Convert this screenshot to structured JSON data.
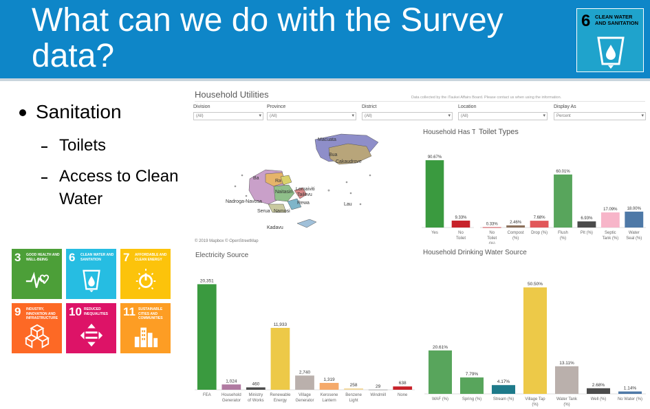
{
  "slide": {
    "title": "What can we do with the Survey data?",
    "bullets": [
      {
        "label": "Sanitation",
        "sub": [
          "Toilets",
          "Access to Clean Water"
        ]
      }
    ]
  },
  "sdg_badge": {
    "number": "6",
    "label": "CLEAN WATER AND SANITATION",
    "icon": "water-drop-glass-icon",
    "color": "#1fa3cc"
  },
  "sdg_grid": [
    {
      "number": "3",
      "label": "GOOD HEALTH AND WELL-BEING",
      "color": "#4c9f38",
      "icon": "heartbeat-icon"
    },
    {
      "number": "6",
      "label": "CLEAN WATER AND SANITATION",
      "color": "#26bde2",
      "icon": "water-drop-glass-icon"
    },
    {
      "number": "7",
      "label": "AFFORDABLE AND CLEAN ENERGY",
      "color": "#fcc30b",
      "icon": "power-sun-icon"
    },
    {
      "number": "9",
      "label": "INDUSTRY, INNOVATION AND INFRASTRUCTURE",
      "color": "#fd6925",
      "icon": "cubes-icon"
    },
    {
      "number": "10",
      "label": "REDUCED INEQUALITIES",
      "color": "#dd1367",
      "icon": "equality-icon"
    },
    {
      "number": "11",
      "label": "SUSTAINABLE CITIES AND COMMUNITIES",
      "color": "#fd9d24",
      "icon": "buildings-icon"
    }
  ],
  "dashboard": {
    "title": "Household Utilities",
    "note": "Data collected by the iTaukei Affairs Board. Please contact us when using the information.",
    "filters": [
      {
        "label": "Division",
        "value": "(All)"
      },
      {
        "label": "Province",
        "value": "(All)"
      },
      {
        "label": "District",
        "value": "(All)"
      },
      {
        "label": "Location",
        "value": "(All)"
      },
      {
        "label": "Display As",
        "value": "Percent"
      }
    ],
    "map": {
      "attribution": "© 2019 Mapbox © OpenStreetMap",
      "labels": [
        "Macuata",
        "Bua",
        "Cakaudrove",
        "Ba",
        "Ra",
        "Naitasiri",
        "Lomaiviti",
        "Tailevu",
        "Rewa",
        "Nadroga-Navosa",
        "Serua",
        "Namosi",
        "Lau",
        "Kadavu"
      ]
    },
    "colors": {
      "accent_green": "#58a55c",
      "yes_green": "#3a9a3f",
      "red": "#c7222a",
      "salmon": "#e15759",
      "pink": "#f7b5c9",
      "blue": "#4e79a7",
      "yellow": "#edc948",
      "grey": "#bab0ac",
      "purple": "#b07aa1",
      "orange": "#f59f5f",
      "teal": "#1e7a8a"
    }
  },
  "chart_data": [
    {
      "type": "bar",
      "title": "Household Has Toilet",
      "categories": [
        "Yes",
        "No Toilet"
      ],
      "values": [
        90.67,
        9.33
      ],
      "labels": [
        "90.67%",
        "9.33%"
      ],
      "colors": [
        "#3a9a3f",
        "#c7222a"
      ],
      "ylim": [
        0,
        100
      ]
    },
    {
      "type": "bar",
      "title": "Toilet Types",
      "categories": [
        "No Toilet (%)",
        "Compost (%)",
        "Drop (%)",
        "Flush (%)",
        "Pit (%)",
        "Septic Tank (%)",
        "Water Seal (%)"
      ],
      "values": [
        0.33,
        2.46,
        7.68,
        60.01,
        6.93,
        17.09,
        18.0
      ],
      "labels": [
        "0.33%",
        "2.46%",
        "7.68%",
        "60.01%",
        "6.93%",
        "17.09%",
        "18.00%"
      ],
      "colors": [
        "#c7222a",
        "#8a6f5a",
        "#e15759",
        "#58a55c",
        "#4b4b4b",
        "#f7b5c9",
        "#4e79a7"
      ],
      "ylim": [
        0,
        70
      ]
    },
    {
      "type": "bar",
      "title": "Electricity Source",
      "categories": [
        "FEA",
        "Household Generator",
        "Ministry of Works",
        "Renewable Energy",
        "Village Generator",
        "Kerosene Lantern",
        "Benzene Light",
        "Windmill",
        "None"
      ],
      "values": [
        20351,
        1024,
        460,
        11933,
        2740,
        1319,
        258,
        29,
        638
      ],
      "labels": [
        "20,351",
        "1,024",
        "460",
        "11,933",
        "2,740",
        "1,319",
        "258",
        "29",
        "638"
      ],
      "colors": [
        "#3a9a3f",
        "#b07aa1",
        "#4b4b4b",
        "#edc948",
        "#bab0ac",
        "#f5a96a",
        "#f1d79a",
        "#9a9a9a",
        "#c7222a"
      ],
      "ylim": [
        0,
        22000
      ]
    },
    {
      "type": "bar",
      "title": "Household Drinking Water Source",
      "categories": [
        "WAF (%)",
        "Spring (%)",
        "Stream (%)",
        "Village Tap (%)",
        "Water Tank (%)",
        "Well (%)",
        "No Water (%)"
      ],
      "values": [
        20.61,
        7.79,
        4.17,
        50.5,
        13.11,
        2.68,
        1.14
      ],
      "labels": [
        "20.61%",
        "7.79%",
        "4.17%",
        "50.50%",
        "13.11%",
        "2.68%",
        "1.14%"
      ],
      "colors": [
        "#58a55c",
        "#58a55c",
        "#1e7a8a",
        "#edc948",
        "#bab0ac",
        "#4b4b4b",
        "#4e79a7"
      ],
      "ylim": [
        0,
        60
      ]
    }
  ]
}
